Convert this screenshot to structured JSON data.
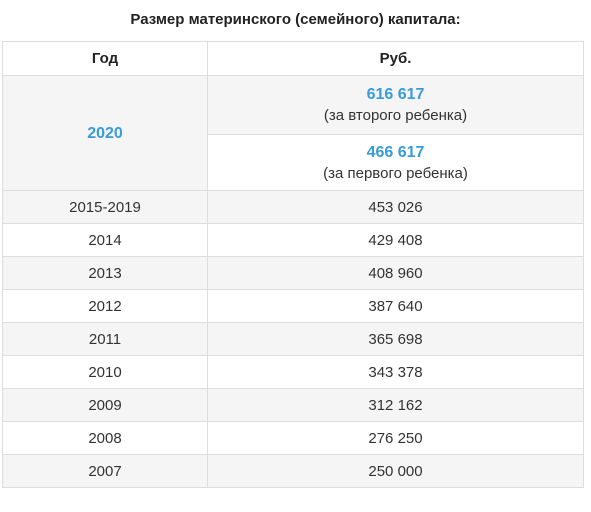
{
  "title": "Размер материнского (семейного) капитала:",
  "headers": {
    "year": "Год",
    "rub": "Руб."
  },
  "accent_color": "#3a9bd9",
  "row_2020": {
    "year": "2020",
    "second_child": {
      "amount": "616 617",
      "note": "(за второго ребенка)"
    },
    "first_child": {
      "amount": "466 617",
      "note": "(за первого ребенка)"
    }
  },
  "rows": [
    {
      "year": "2015-2019",
      "amount": "453 026"
    },
    {
      "year": "2014",
      "amount": "429 408"
    },
    {
      "year": "2013",
      "amount": "408 960"
    },
    {
      "year": "2012",
      "amount": "387 640"
    },
    {
      "year": "2011",
      "amount": "365 698"
    },
    {
      "year": "2010",
      "amount": "343 378"
    },
    {
      "year": "2009",
      "amount": "312 162"
    },
    {
      "year": "2008",
      "amount": "276 250"
    },
    {
      "year": "2007",
      "amount": "250 000"
    }
  ]
}
